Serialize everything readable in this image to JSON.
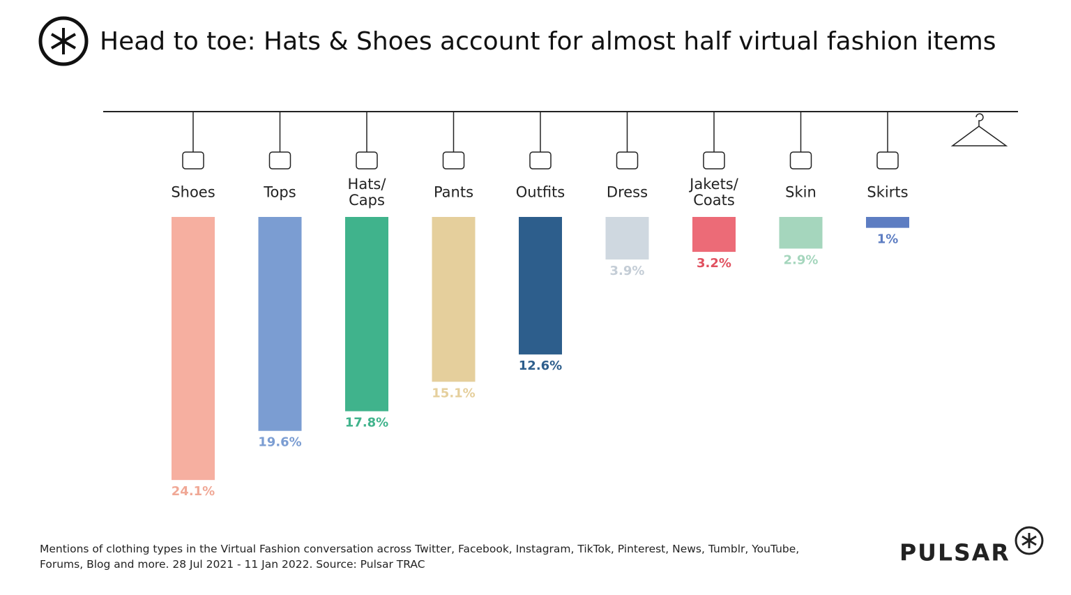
{
  "chart_data": {
    "type": "bar",
    "title": "Head to toe: Hats & Shoes account for almost half virtual fashion items",
    "categories": [
      "Shoes",
      "Tops",
      "Hats/ Caps",
      "Pants",
      "Outfits",
      "Dress",
      "Jakets/ Coats",
      "Skin",
      "Skirts"
    ],
    "values": [
      24.1,
      19.6,
      17.8,
      15.1,
      12.6,
      3.9,
      3.2,
      2.9,
      1
    ],
    "value_labels": [
      "24.1%",
      "19.6%",
      "17.8%",
      "15.1%",
      "12.6%",
      "3.9%",
      "3.2%",
      "2.9%",
      "1%"
    ],
    "colors": [
      "#f6afa0",
      "#7b9dd2",
      "#40b38c",
      "#e5cf9c",
      "#2d5e8c",
      "#cfd8e0",
      "#ec6b77",
      "#a5d6bd",
      "#5d7dc2"
    ],
    "label_colors": [
      "#f0a896",
      "#7b9dd2",
      "#40b38c",
      "#e5cf9c",
      "#2d5e8c",
      "#c4cdd6",
      "#e0505f",
      "#a5d6bd",
      "#5d7dc2"
    ],
    "footnote": [
      "Mentions of clothing types in the Virtual Fashion conversation across Twitter, Facebook, Instagram, TikTok, Pinterest, News, Tumblr, YouTube,",
      "Forums, Blog and more. 28 Jul 2021  - 11 Jan 2022. Source: Pulsar TRAC"
    ],
    "brand": "PULSAR"
  }
}
